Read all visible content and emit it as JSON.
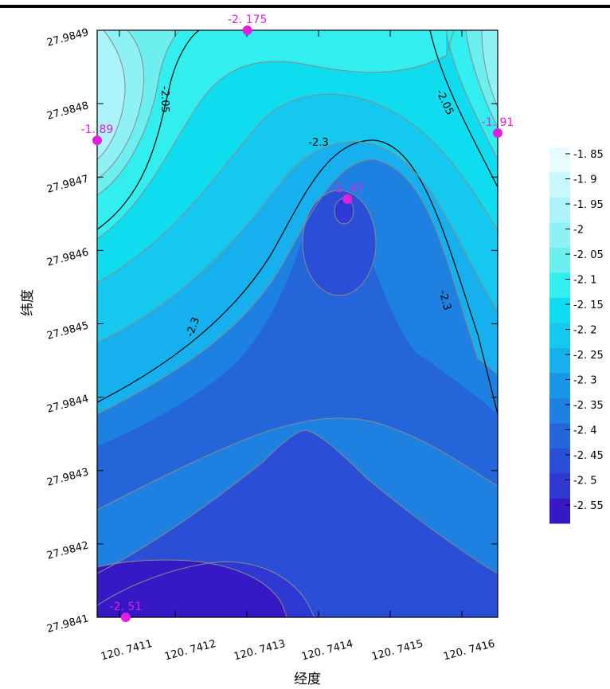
{
  "chart_data": {
    "type": "contour",
    "xlabel": "经度",
    "ylabel": "纬度",
    "xlim": [
      120.74109,
      120.74165
    ],
    "ylim": [
      27.9841,
      27.9849
    ],
    "x_ticks": [
      "120. 7411",
      "120. 7412",
      "120. 7413",
      "120. 7414",
      "120. 7415",
      "120. 7416"
    ],
    "y_ticks": [
      "27.9841",
      "27.9842",
      "27.9843",
      "27.9844",
      "27.9845",
      "27.9846",
      "27.9847",
      "27.9848",
      "27.9849"
    ],
    "points": [
      {
        "label": "-2. 175",
        "x": 120.7413,
        "y": 27.98491,
        "value": -2.175
      },
      {
        "label": "-1. 89",
        "x": 120.74109,
        "y": 27.98475,
        "value": -1.89
      },
      {
        "label": "-1. 91",
        "x": 120.74165,
        "y": 27.98476,
        "value": -1.91
      },
      {
        "label": "-2. 47",
        "x": 120.74144,
        "y": 27.98467,
        "value": -2.47
      },
      {
        "label": "-2. 51",
        "x": 120.74113,
        "y": 27.9841,
        "value": -2.51
      }
    ],
    "contour_labels": [
      "-2.05",
      "-2.05",
      "-2.3",
      "-2.3",
      "-2.3"
    ],
    "legend": {
      "levels": [
        "-1. 85",
        "-1. 9",
        "-1. 95",
        "-2",
        "-2. 05",
        "-2. 1",
        "-2. 15",
        "-2. 2",
        "-2. 25",
        "-2. 3",
        "-2. 35",
        "-2. 4",
        "-2. 45",
        "-2. 5",
        "-2. 55"
      ],
      "colors": [
        "#e6fcff",
        "#c8f8fb",
        "#acf4f9",
        "#8ef1f6",
        "#6eefef",
        "#33eeee",
        "#10dcf0",
        "#14c8f0",
        "#16b0ee",
        "#1896e8",
        "#1e80e0",
        "#2466da",
        "#2a4ed6",
        "#2e38d2",
        "#3618c4"
      ],
      "position": "right"
    }
  }
}
